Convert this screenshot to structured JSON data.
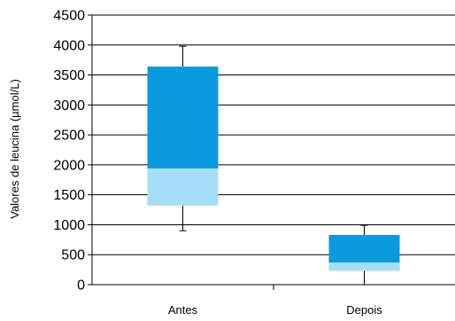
{
  "chart_data": {
    "type": "box",
    "title": "",
    "xlabel": "",
    "ylabel": "Valores de leucina (µmol/L)",
    "categories": [
      "Antes",
      "Depois"
    ],
    "boxes": [
      {
        "category": "Antes",
        "min": 900,
        "q1": 1320,
        "median": 1940,
        "q3": 3640,
        "max": 3980
      },
      {
        "category": "Depois",
        "min": 0,
        "q1": 230,
        "median": 370,
        "q3": 830,
        "max": 990
      }
    ],
    "ylim": [
      0,
      4500
    ],
    "yticks": [
      0,
      500,
      1000,
      1500,
      2000,
      2500,
      3000,
      3500,
      4000,
      4500
    ],
    "grid": true,
    "legend": "none",
    "colors": {
      "upper_box": "#0b9ae0",
      "lower_box": "#a6def7",
      "grid": "#000000",
      "whisker": "#000000"
    }
  }
}
